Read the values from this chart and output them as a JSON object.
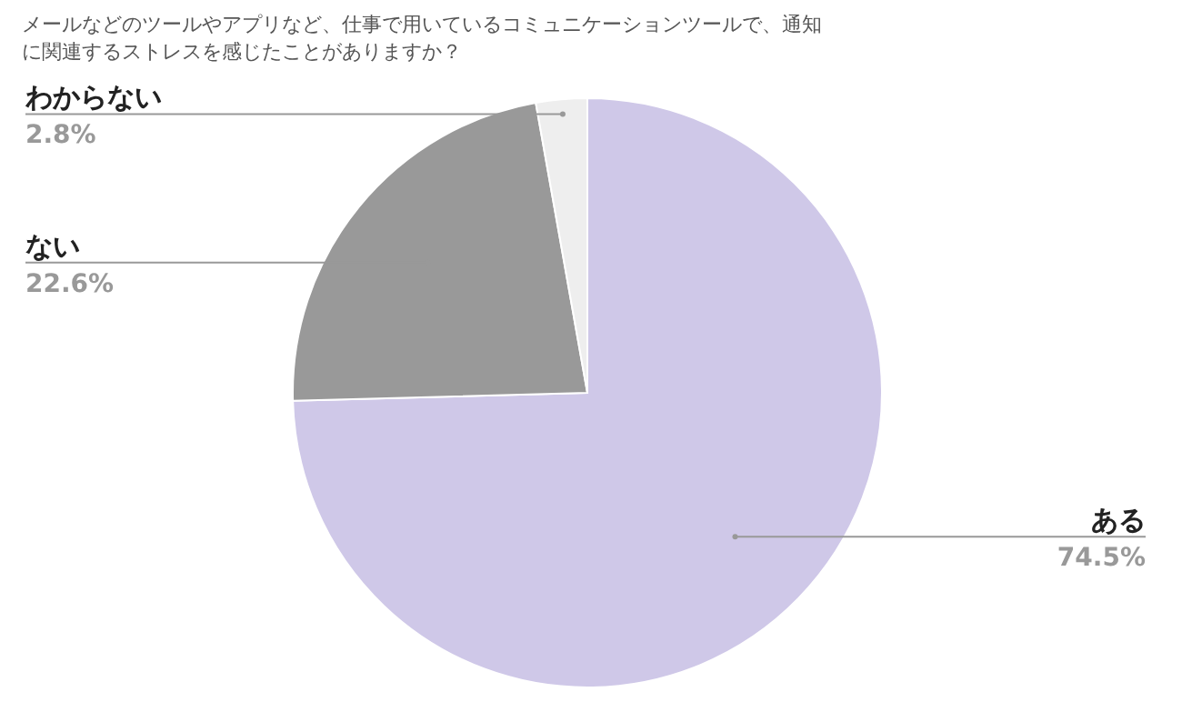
{
  "chart_data": {
    "type": "pie",
    "title": "メールなどのツールやアプリなど、仕事で用いているコミュニケーションツールで、通知に関連するストレスを感じたことがありますか？",
    "categories": [
      "ある",
      "ない",
      "わからない"
    ],
    "values": [
      74.5,
      22.6,
      2.8
    ],
    "colors": [
      "#cfc8e8",
      "#999999",
      "#eeeeee"
    ],
    "value_labels": [
      "74.5%",
      "22.6%",
      "2.8%"
    ]
  }
}
